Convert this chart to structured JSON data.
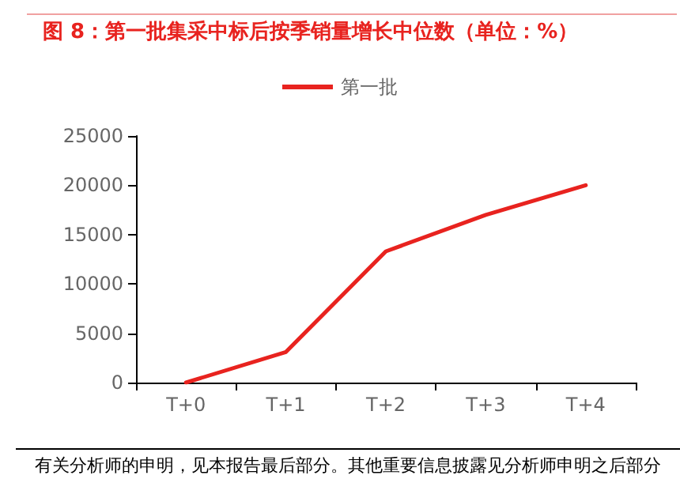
{
  "chart_data": {
    "type": "line",
    "title": "图 8：第一批集采中标后按季销量增长中位数（单位：%）",
    "categories": [
      "T+0",
      "T+1",
      "T+2",
      "T+3",
      "T+4"
    ],
    "series": [
      {
        "name": "第一批",
        "color": "#e8231f",
        "values": [
          0,
          3100,
          13300,
          17000,
          20000
        ]
      }
    ],
    "ylim": [
      0,
      25000
    ],
    "yticks": [
      0,
      5000,
      10000,
      15000,
      20000,
      25000
    ],
    "grid": false,
    "legend": "top",
    "marker": "none",
    "line_style": "solid",
    "annotations": [
      "有关分析师的申明，见本报告最后部分。其他重要信息披露见分析师申明之后部分"
    ]
  }
}
